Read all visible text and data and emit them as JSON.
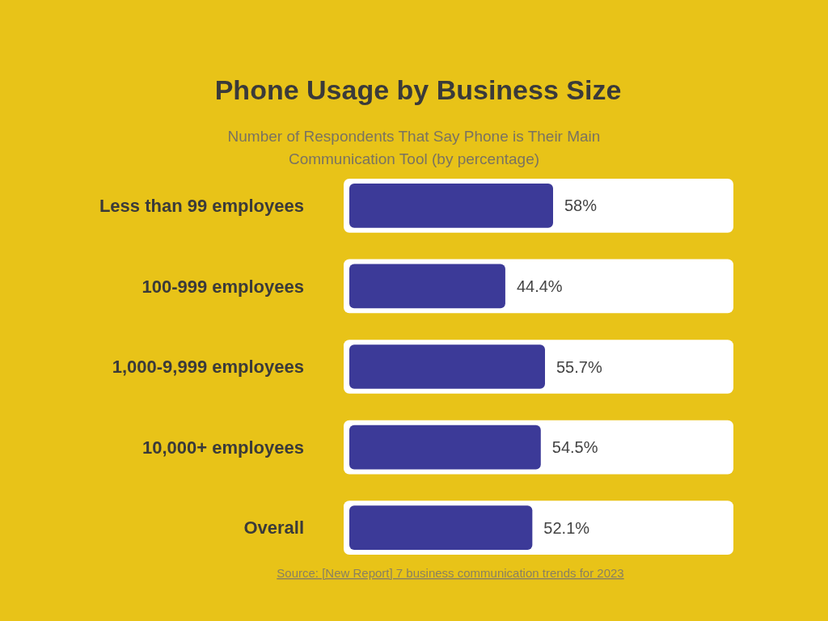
{
  "chart_data": {
    "type": "bar",
    "orientation": "horizontal",
    "title": "Phone Usage by Business Size",
    "subtitle": "Number of Respondents That Say Phone is Their Main Communication Tool (by percentage)",
    "categories": [
      "Less than 99 employees",
      "100-999 employees",
      "1,000-9,999 employees",
      "10,000+ employees",
      "Overall"
    ],
    "values": [
      58,
      44.4,
      55.7,
      54.5,
      52.1
    ],
    "value_labels": [
      "58%",
      "44.4%",
      "55.7%",
      "54.5%",
      "52.1%"
    ],
    "color": "#3c3a98",
    "tick_labels": "y",
    "annotations": [
      "Source: [New Report] 7 business communication trends for 2023"
    ]
  }
}
